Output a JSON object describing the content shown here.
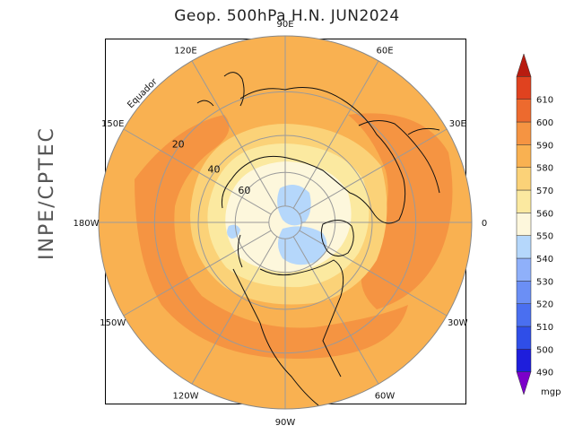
{
  "title": "Geop. 500hPa H.N. JUN2024",
  "credit": "INPE/CPTEC",
  "map": {
    "projection": "north-polar-stereographic",
    "longitude_labels": [
      {
        "lon": 90,
        "text": "90E"
      },
      {
        "lon": 60,
        "text": "60E"
      },
      {
        "lon": 30,
        "text": "30E"
      },
      {
        "lon": 0,
        "text": "0"
      },
      {
        "lon": -30,
        "text": "30W"
      },
      {
        "lon": -60,
        "text": "60W"
      },
      {
        "lon": -90,
        "text": "90W"
      },
      {
        "lon": -120,
        "text": "120W"
      },
      {
        "lon": -150,
        "text": "150W"
      },
      {
        "lon": 180,
        "text": "180W"
      },
      {
        "lon": 150,
        "text": "150E"
      },
      {
        "lon": 120,
        "text": "120E"
      }
    ],
    "latitude_labels": [
      {
        "lat": 60,
        "text": "60"
      },
      {
        "lat": 40,
        "text": "40"
      },
      {
        "lat": 20,
        "text": "20"
      }
    ],
    "equator_label": "Equador"
  },
  "colorbar": {
    "levels": [
      "490",
      "500",
      "510",
      "520",
      "530",
      "540",
      "550",
      "560",
      "570",
      "580",
      "590",
      "600",
      "610"
    ],
    "colors": [
      "#7b00c9",
      "#1e1edc",
      "#2f4ee8",
      "#4a6ff0",
      "#6b8ff5",
      "#8fb0fa",
      "#b5d7fb",
      "#fdf7dc",
      "#fbe9a0",
      "#fbd278",
      "#f9b151",
      "#f59442",
      "#ed6a2e",
      "#e0421f",
      "#b81c10"
    ],
    "unit": "mgp"
  }
}
